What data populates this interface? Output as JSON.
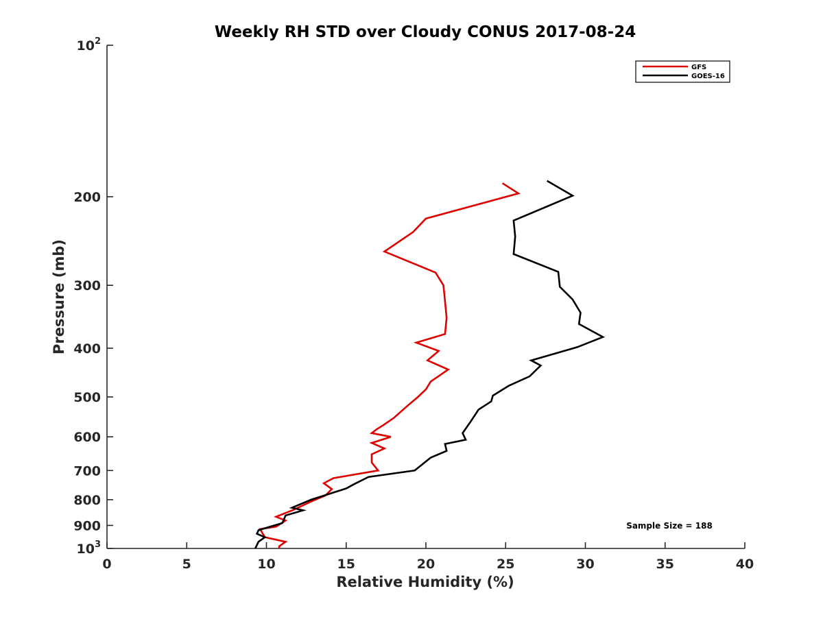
{
  "chart_data": {
    "type": "line",
    "title": "Weekly RH STD over Cloudy CONUS 2017-08-24",
    "xlabel": "Relative Humidity (%)",
    "ylabel": "Pressure (mb)",
    "xlim": [
      0,
      40
    ],
    "ylim": [
      100,
      1000
    ],
    "yscale": "log",
    "y_reversed": true,
    "x_ticks": [
      0,
      5,
      10,
      15,
      20,
      25,
      30,
      35,
      40
    ],
    "y_ticks": [
      {
        "value": 100,
        "base": "10",
        "exp": "2"
      },
      {
        "value": 200,
        "label": "200"
      },
      {
        "value": 300,
        "label": "300"
      },
      {
        "value": 400,
        "label": "400"
      },
      {
        "value": 500,
        "label": "500"
      },
      {
        "value": 600,
        "label": "600"
      },
      {
        "value": 700,
        "label": "700"
      },
      {
        "value": 800,
        "label": "800"
      },
      {
        "value": 900,
        "label": "900"
      },
      {
        "value": 1000,
        "base": "10",
        "exp": "3"
      }
    ],
    "grid": false,
    "legend_position": "top-right",
    "annotation": "Sample Size = 188",
    "series": [
      {
        "name": "GFS",
        "color": "#e00000",
        "x": [
          24.8,
          25.8,
          20.0,
          19.2,
          17.4,
          20.6,
          21.1,
          21.2,
          21.3,
          21.2,
          19.4,
          20.8,
          20.1,
          21.4,
          20.3,
          20.0,
          19.5,
          18.8,
          18.0,
          17.4,
          16.9,
          16.6,
          17.8,
          16.6,
          17.4,
          16.6,
          16.6,
          17.0,
          14.2,
          13.6,
          14.1,
          13.7,
          12.9,
          11.7,
          10.6,
          11.2,
          10.6,
          9.6,
          9.9,
          11.2,
          10.8,
          10.8
        ],
        "y": [
          188,
          197,
          221,
          235,
          257,
          283,
          300,
          323,
          348,
          375,
          390,
          405,
          423,
          441,
          466,
          483,
          500,
          522,
          550,
          567,
          580,
          590,
          600,
          617,
          633,
          650,
          675,
          700,
          725,
          742,
          762,
          785,
          804,
          838,
          865,
          880,
          905,
          915,
          950,
          970,
          990,
          1000
        ]
      },
      {
        "name": "GOES-16",
        "color": "#000000",
        "x": [
          27.6,
          29.2,
          25.5,
          25.6,
          25.5,
          28.3,
          28.4,
          29.2,
          29.7,
          29.6,
          31.1,
          29.5,
          26.6,
          27.2,
          26.5,
          25.2,
          24.2,
          24.1,
          23.3,
          22.8,
          22.3,
          22.5,
          21.2,
          21.3,
          20.3,
          19.3,
          16.4,
          15.5,
          15.0,
          12.8,
          11.6,
          12.3,
          11.2,
          11.0,
          9.5,
          9.4,
          9.9,
          9.5,
          9.3
        ],
        "y": [
          186,
          199,
          223,
          240,
          260,
          282,
          302,
          320,
          340,
          358,
          380,
          398,
          423,
          433,
          455,
          475,
          497,
          510,
          530,
          560,
          590,
          608,
          620,
          640,
          660,
          700,
          721,
          745,
          760,
          800,
          830,
          840,
          860,
          890,
          920,
          935,
          950,
          970,
          1000
        ]
      }
    ]
  }
}
